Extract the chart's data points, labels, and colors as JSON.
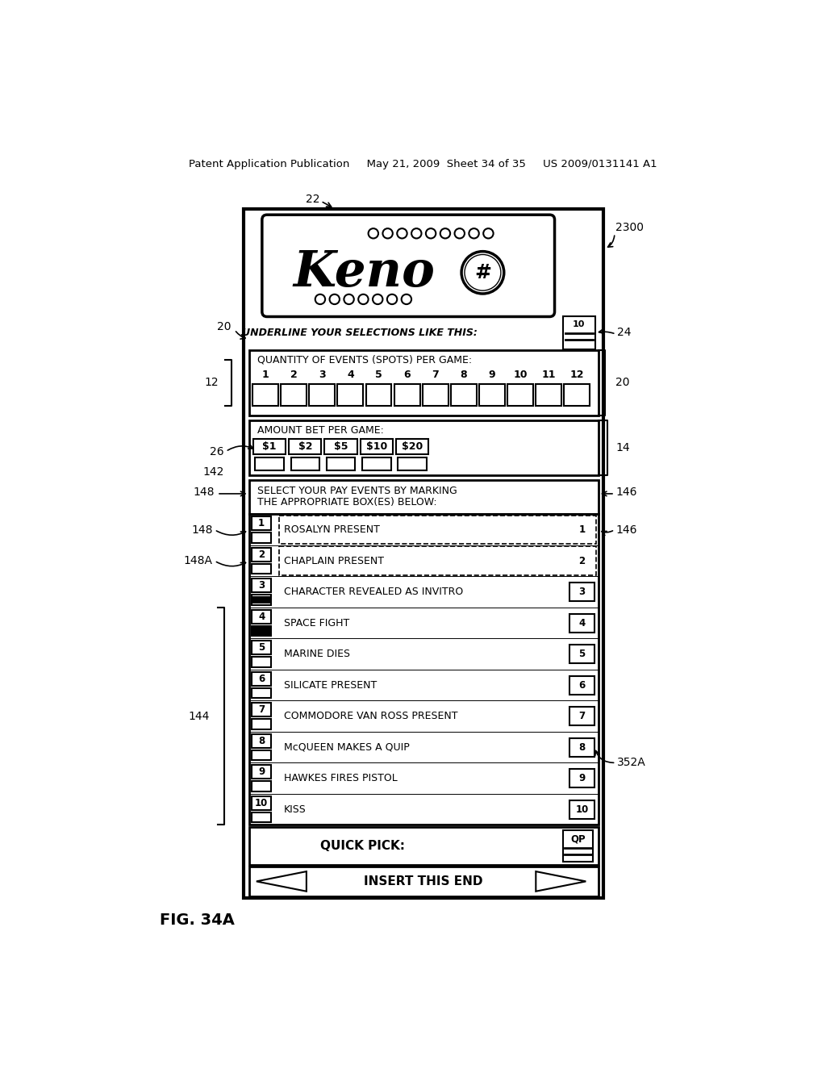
{
  "header_text": "Patent Application Publication     May 21, 2009  Sheet 34 of 35     US 2009/0131141 A1",
  "fig_label": "FIG. 34A",
  "card_label": "2300",
  "label_22": "22",
  "label_20_top": "20",
  "label_20_right": "20",
  "label_24": "24",
  "label_12": "12",
  "label_14": "14",
  "label_26": "26",
  "label_142": "142",
  "label_148_top": "148",
  "label_148_mid": "148",
  "label_148A": "148A",
  "label_146_top": "146",
  "label_146_mid": "146",
  "label_144": "144",
  "label_352A": "352A",
  "underline_text": "UNDERLINE YOUR SELECTIONS LIKE THIS:",
  "spots_label": "QUANTITY OF EVENTS (SPOTS) PER GAME:",
  "spots_numbers": [
    "1",
    "2",
    "3",
    "4",
    "5",
    "6",
    "7",
    "8",
    "9",
    "10",
    "11",
    "12"
  ],
  "bet_label": "AMOUNT BET PER GAME:",
  "bet_amounts": [
    "$1",
    "$2",
    "$5",
    "$10",
    "$20"
  ],
  "select_text1": "SELECT YOUR PAY EVENTS BY MARKING",
  "select_text2": "THE APPROPRIATE BOX(ES) BELOW:",
  "events": [
    {
      "num": "1",
      "name": "ROSALYN PRESENT",
      "dashed": true
    },
    {
      "num": "2",
      "name": "CHAPLAIN PRESENT",
      "dashed": true
    },
    {
      "num": "3",
      "name": "CHARACTER REVEALED AS INVITRO",
      "dashed": false
    },
    {
      "num": "4",
      "name": "SPACE FIGHT",
      "dashed": false
    },
    {
      "num": "5",
      "name": "MARINE DIES",
      "dashed": false
    },
    {
      "num": "6",
      "name": "SILICATE PRESENT",
      "dashed": false
    },
    {
      "num": "7",
      "name": "COMMODORE VAN ROSS PRESENT",
      "dashed": false
    },
    {
      "num": "8",
      "name": "McQUEEN MAKES A QUIP",
      "dashed": false
    },
    {
      "num": "9",
      "name": "HAWKES FIRES PISTOL",
      "dashed": false
    },
    {
      "num": "10",
      "name": "KISS",
      "dashed": false
    }
  ],
  "quick_pick_text": "QUICK PICK:",
  "insert_text": "INSERT THIS END"
}
